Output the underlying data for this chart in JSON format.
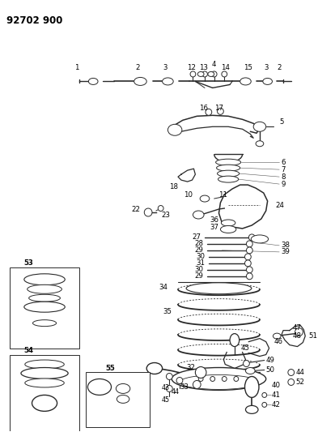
{
  "title": "92702 900",
  "bg_color": "#ffffff",
  "lc": "#2a2a2a",
  "fig_width": 3.93,
  "fig_height": 5.33,
  "dpi": 100,
  "title_fontsize": 8.5,
  "label_fontsize": 6.2
}
